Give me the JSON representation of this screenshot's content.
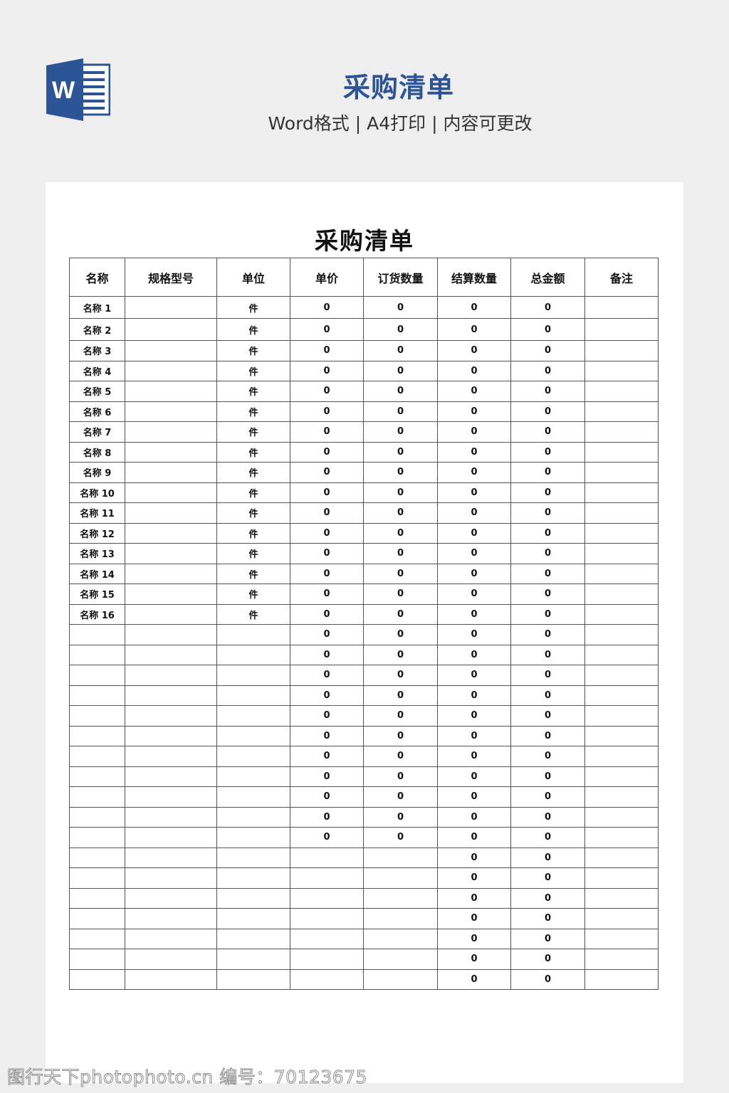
{
  "banner": {
    "title": "采购清单",
    "subtitle": "Word格式 | A4打印 | 内容可更改",
    "logo_letter": "W"
  },
  "document": {
    "title": "采购清单",
    "columns": [
      "名称",
      "规格型号",
      "单位",
      "单价",
      "订货数量",
      "结算数量",
      "总金额",
      "备注"
    ],
    "rows": [
      [
        "名称 1",
        "",
        "件",
        "0",
        "0",
        "0",
        "0",
        ""
      ],
      [
        "名称 2",
        "",
        "件",
        "0",
        "0",
        "0",
        "0",
        ""
      ],
      [
        "名称 3",
        "",
        "件",
        "0",
        "0",
        "0",
        "0",
        ""
      ],
      [
        "名称 4",
        "",
        "件",
        "0",
        "0",
        "0",
        "0",
        ""
      ],
      [
        "名称 5",
        "",
        "件",
        "0",
        "0",
        "0",
        "0",
        ""
      ],
      [
        "名称 6",
        "",
        "件",
        "0",
        "0",
        "0",
        "0",
        ""
      ],
      [
        "名称 7",
        "",
        "件",
        "0",
        "0",
        "0",
        "0",
        ""
      ],
      [
        "名称 8",
        "",
        "件",
        "0",
        "0",
        "0",
        "0",
        ""
      ],
      [
        "名称 9",
        "",
        "件",
        "0",
        "0",
        "0",
        "0",
        ""
      ],
      [
        "名称 10",
        "",
        "件",
        "0",
        "0",
        "0",
        "0",
        ""
      ],
      [
        "名称 11",
        "",
        "件",
        "0",
        "0",
        "0",
        "0",
        ""
      ],
      [
        "名称 12",
        "",
        "件",
        "0",
        "0",
        "0",
        "0",
        ""
      ],
      [
        "名称 13",
        "",
        "件",
        "0",
        "0",
        "0",
        "0",
        ""
      ],
      [
        "名称 14",
        "",
        "件",
        "0",
        "0",
        "0",
        "0",
        ""
      ],
      [
        "名称 15",
        "",
        "件",
        "0",
        "0",
        "0",
        "0",
        ""
      ],
      [
        "名称 16",
        "",
        "件",
        "0",
        "0",
        "0",
        "0",
        ""
      ],
      [
        "",
        "",
        "",
        "0",
        "0",
        "0",
        "0",
        ""
      ],
      [
        "",
        "",
        "",
        "0",
        "0",
        "0",
        "0",
        ""
      ],
      [
        "",
        "",
        "",
        "0",
        "0",
        "0",
        "0",
        ""
      ],
      [
        "",
        "",
        "",
        "0",
        "0",
        "0",
        "0",
        ""
      ],
      [
        "",
        "",
        "",
        "0",
        "0",
        "0",
        "0",
        ""
      ],
      [
        "",
        "",
        "",
        "0",
        "0",
        "0",
        "0",
        ""
      ],
      [
        "",
        "",
        "",
        "0",
        "0",
        "0",
        "0",
        ""
      ],
      [
        "",
        "",
        "",
        "0",
        "0",
        "0",
        "0",
        ""
      ],
      [
        "",
        "",
        "",
        "0",
        "0",
        "0",
        "0",
        ""
      ],
      [
        "",
        "",
        "",
        "0",
        "0",
        "0",
        "0",
        ""
      ],
      [
        "",
        "",
        "",
        "0",
        "0",
        "0",
        "0",
        ""
      ],
      [
        "",
        "",
        "",
        "",
        "",
        "0",
        "0",
        ""
      ],
      [
        "",
        "",
        "",
        "",
        "",
        "0",
        "0",
        ""
      ],
      [
        "",
        "",
        "",
        "",
        "",
        "0",
        "0",
        ""
      ],
      [
        "",
        "",
        "",
        "",
        "",
        "0",
        "0",
        ""
      ],
      [
        "",
        "",
        "",
        "",
        "",
        "0",
        "0",
        ""
      ],
      [
        "",
        "",
        "",
        "",
        "",
        "0",
        "0",
        ""
      ],
      [
        "",
        "",
        "",
        "",
        "",
        "0",
        "0",
        ""
      ]
    ]
  },
  "watermark": "图行天下photophoto.cn 编号：70123675",
  "colors": {
    "brand": "#2d5596",
    "background": "#efefef"
  }
}
